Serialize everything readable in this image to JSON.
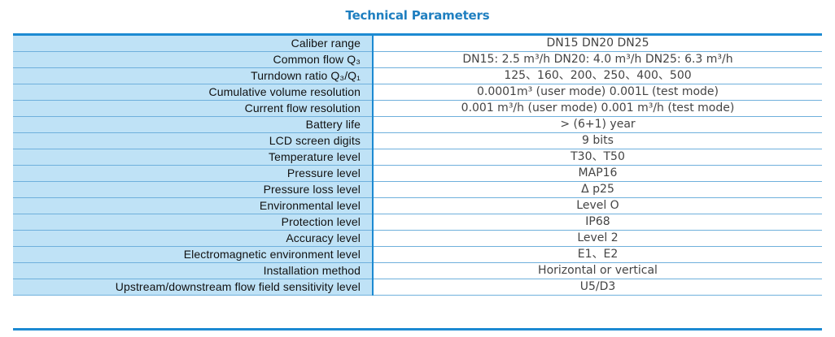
{
  "title": "Technical Parameters",
  "rows": [
    {
      "label": "Caliber range",
      "value": "DN15  DN20  DN25"
    },
    {
      "label": "Common flow Q₃",
      "value": "DN15: 2.5 m³/h   DN20: 4.0 m³/h    DN25: 6.3 m³/h"
    },
    {
      "label": "Turndown ratio Q₃/Q₁",
      "value": "125、160、200、250、400、500"
    },
    {
      "label": "Cumulative volume resolution",
      "value": "0.0001m³  (user mode)    0.001L  (test mode)"
    },
    {
      "label": "Current flow resolution",
      "value": "0.001 m³/h  (user mode)    0.001 m³/h  (test mode)"
    },
    {
      "label": "Battery life",
      "value": ">  (6+1)  year"
    },
    {
      "label": "LCD screen digits",
      "value": "9 bits"
    },
    {
      "label": "Temperature level",
      "value": "T30、T50"
    },
    {
      "label": "Pressure level",
      "value": "MAP16"
    },
    {
      "label": "Pressure loss level",
      "value": "Δ p25"
    },
    {
      "label": "Environmental level",
      "value": "Level O"
    },
    {
      "label": "Protection level",
      "value": "IP68"
    },
    {
      "label": "Accuracy level",
      "value": "Level 2"
    },
    {
      "label": "Electromagnetic environment level",
      "value": "E1、E2"
    },
    {
      "label": "Installation method",
      "value": "Horizontal or vertical"
    },
    {
      "label": "Upstream/downstream flow field sensitivity level",
      "value": "U5/D3"
    }
  ]
}
